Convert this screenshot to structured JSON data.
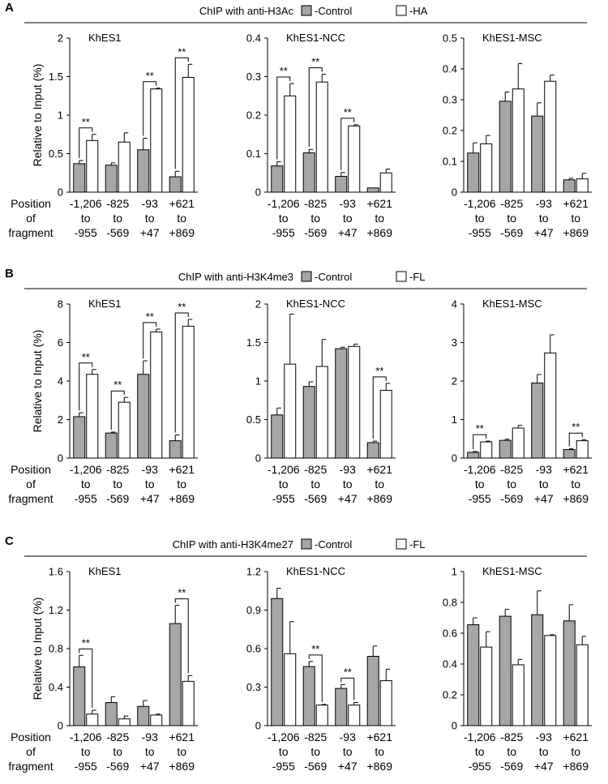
{
  "colors": {
    "control": "#a6a6a6",
    "treatment": "#ffffff",
    "stroke": "#000000"
  },
  "position_label": [
    "Position",
    "of",
    "fragment"
  ],
  "ylabel": "Relative to Input (%)",
  "fragments": [
    [
      "-1,206",
      "to",
      "-955"
    ],
    [
      "-825",
      "to",
      "-569"
    ],
    [
      "-93",
      "to",
      "+47"
    ],
    [
      "+621",
      "to",
      "+869"
    ]
  ],
  "panels": [
    {
      "letter": "A",
      "title": "ChIP with anti-H3Ac",
      "legend": {
        "control": "-Control",
        "treatment": "-HA"
      },
      "charts": [
        {
          "title": "KhES1",
          "ylim": [
            0,
            2
          ],
          "ticks": [
            "0",
            "0.5",
            "1",
            "1.5",
            "2"
          ],
          "series": [
            {
              "name": "-Control",
              "values": [
                0.37,
                0.35,
                0.55,
                0.2
              ],
              "errors": [
                0.04,
                0.03,
                0.15,
                0.07
              ]
            },
            {
              "name": "-HA",
              "values": [
                0.67,
                0.65,
                1.34,
                1.49
              ],
              "errors": [
                0.08,
                0.12,
                0.01,
                0.17
              ]
            }
          ],
          "significance": [
            {
              "index": 0,
              "label": "**"
            },
            {
              "index": 2,
              "label": "**"
            },
            {
              "index": 3,
              "label": "**"
            }
          ]
        },
        {
          "title": "KhES1-NCC",
          "ylim": [
            0,
            0.4
          ],
          "ticks": [
            "0",
            "0.1",
            "0.2",
            "0.3",
            "0.4"
          ],
          "series": [
            {
              "name": "-Control",
              "values": [
                0.068,
                0.102,
                0.041,
                0.011
              ],
              "errors": [
                0.011,
                0.009,
                0.01,
                0.0
              ]
            },
            {
              "name": "-HA",
              "values": [
                0.25,
                0.286,
                0.172,
                0.05
              ],
              "errors": [
                0.032,
                0.02,
                0.003,
                0.01
              ]
            }
          ],
          "significance": [
            {
              "index": 0,
              "label": "**"
            },
            {
              "index": 1,
              "label": "**"
            },
            {
              "index": 2,
              "label": "**"
            }
          ]
        },
        {
          "title": "KhES1-MSC",
          "ylim": [
            0,
            0.5
          ],
          "ticks": [
            "0",
            "0.1",
            "0.2",
            "0.3",
            "0.4",
            "0.5"
          ],
          "series": [
            {
              "name": "-Control",
              "values": [
                0.127,
                0.295,
                0.247,
                0.04
              ],
              "errors": [
                0.033,
                0.03,
                0.043,
                0.005
              ]
            },
            {
              "name": "-HA",
              "values": [
                0.157,
                0.335,
                0.36,
                0.043
              ],
              "errors": [
                0.027,
                0.082,
                0.02,
                0.018
              ]
            }
          ],
          "significance": []
        }
      ]
    },
    {
      "letter": "B",
      "title": "ChIP with anti-H3K4me3",
      "legend": {
        "control": "-Control",
        "treatment": "-FL"
      },
      "charts": [
        {
          "title": "KhES1",
          "ylim": [
            0,
            8
          ],
          "ticks": [
            "0",
            "2",
            "4",
            "6",
            "8"
          ],
          "series": [
            {
              "name": "-Control",
              "values": [
                2.15,
                1.3,
                4.35,
                0.9
              ],
              "errors": [
                0.2,
                0.05,
                0.7,
                0.3
              ]
            },
            {
              "name": "-FL",
              "values": [
                4.35,
                2.9,
                6.55,
                6.85
              ],
              "errors": [
                0.25,
                0.25,
                0.15,
                0.35
              ]
            }
          ],
          "significance": [
            {
              "index": 0,
              "label": "**"
            },
            {
              "index": 1,
              "label": "**"
            },
            {
              "index": 2,
              "label": "**"
            },
            {
              "index": 3,
              "label": "**"
            }
          ]
        },
        {
          "title": "KhES1-NCC",
          "ylim": [
            0,
            2
          ],
          "ticks": [
            "0",
            "0.5",
            "1",
            "1.5",
            "2"
          ],
          "series": [
            {
              "name": "-Control",
              "values": [
                0.56,
                0.93,
                1.42,
                0.2
              ],
              "errors": [
                0.09,
                0.06,
                0.02,
                0.02
              ]
            },
            {
              "name": "-FL",
              "values": [
                1.22,
                1.19,
                1.45,
                0.88
              ],
              "errors": [
                0.65,
                0.35,
                0.03,
                0.09
              ]
            }
          ],
          "significance": [
            {
              "index": 3,
              "label": "**"
            }
          ]
        },
        {
          "title": "KhES1-MSC",
          "ylim": [
            0,
            4
          ],
          "ticks": [
            "0",
            "1",
            "2",
            "3",
            "4"
          ],
          "series": [
            {
              "name": "-Control",
              "values": [
                0.15,
                0.46,
                1.95,
                0.22
              ],
              "errors": [
                0.02,
                0.03,
                0.22,
                0.02
              ]
            },
            {
              "name": "-FL",
              "values": [
                0.42,
                0.78,
                2.73,
                0.45
              ],
              "errors": [
                0.02,
                0.07,
                0.47,
                0.03
              ]
            }
          ],
          "significance": [
            {
              "index": 0,
              "label": "**"
            },
            {
              "index": 3,
              "label": "**"
            }
          ]
        }
      ]
    },
    {
      "letter": "C",
      "title": "ChIP with anti-H3K4me27",
      "legend": {
        "control": "-Control",
        "treatment": "-FL"
      },
      "charts": [
        {
          "title": "KhES1",
          "ylim": [
            0,
            1.6
          ],
          "ticks": [
            "0",
            "0.4",
            "0.8",
            "1.2",
            "1.6"
          ],
          "series": [
            {
              "name": "-Control",
              "values": [
                0.61,
                0.24,
                0.2,
                1.06
              ],
              "errors": [
                0.12,
                0.06,
                0.06,
                0.19
              ]
            },
            {
              "name": "-FL",
              "values": [
                0.12,
                0.07,
                0.11,
                0.46
              ],
              "errors": [
                0.04,
                0.03,
                0.01,
                0.06
              ]
            }
          ],
          "significance": [
            {
              "index": 0,
              "label": "**"
            },
            {
              "index": 3,
              "label": "**"
            }
          ]
        },
        {
          "title": "KhES1-NCC",
          "ylim": [
            0,
            1.2
          ],
          "ticks": [
            "0",
            "0.3",
            "0.6",
            "0.9",
            "1.2"
          ],
          "series": [
            {
              "name": "-Control",
              "values": [
                0.99,
                0.46,
                0.29,
                0.54
              ],
              "errors": [
                0.08,
                0.04,
                0.03,
                0.08
              ]
            },
            {
              "name": "-FL",
              "values": [
                0.56,
                0.16,
                0.16,
                0.35
              ],
              "errors": [
                0.25,
                0.005,
                0.02,
                0.09
              ]
            }
          ],
          "significance": [
            {
              "index": 1,
              "label": "**"
            },
            {
              "index": 2,
              "label": "**"
            }
          ]
        },
        {
          "title": "KhES1-MSC",
          "ylim": [
            0,
            1
          ],
          "ticks": [
            "0",
            "0.2",
            "0.4",
            "0.6",
            "0.8",
            "1"
          ],
          "series": [
            {
              "name": "-Control",
              "values": [
                0.655,
                0.71,
                0.72,
                0.68
              ],
              "errors": [
                0.045,
                0.045,
                0.155,
                0.105
              ]
            },
            {
              "name": "-FL",
              "values": [
                0.51,
                0.395,
                0.585,
                0.525
              ],
              "errors": [
                0.1,
                0.035,
                0.005,
                0.055
              ]
            }
          ],
          "significance": []
        }
      ]
    }
  ],
  "chart_data": [
    {
      "type": "bar",
      "panel": "A",
      "title": "KhES1",
      "categories": [
        "-1,206 to -955",
        "-825 to -569",
        "-93 to +47",
        "+621 to +869"
      ],
      "ylabel": "Relative to Input (%)",
      "ylim": [
        0,
        2
      ],
      "series": [
        {
          "name": "-Control",
          "values": [
            0.37,
            0.35,
            0.55,
            0.2
          ]
        },
        {
          "name": "-HA",
          "values": [
            0.67,
            0.65,
            1.34,
            1.49
          ]
        }
      ]
    },
    {
      "type": "bar",
      "panel": "A",
      "title": "KhES1-NCC",
      "categories": [
        "-1,206 to -955",
        "-825 to -569",
        "-93 to +47",
        "+621 to +869"
      ],
      "ylim": [
        0,
        0.4
      ],
      "series": [
        {
          "name": "-Control",
          "values": [
            0.068,
            0.102,
            0.041,
            0.011
          ]
        },
        {
          "name": "-HA",
          "values": [
            0.25,
            0.286,
            0.172,
            0.05
          ]
        }
      ]
    },
    {
      "type": "bar",
      "panel": "A",
      "title": "KhES1-MSC",
      "categories": [
        "-1,206 to -955",
        "-825 to -569",
        "-93 to +47",
        "+621 to +869"
      ],
      "ylim": [
        0,
        0.5
      ],
      "series": [
        {
          "name": "-Control",
          "values": [
            0.127,
            0.295,
            0.247,
            0.04
          ]
        },
        {
          "name": "-HA",
          "values": [
            0.157,
            0.335,
            0.36,
            0.043
          ]
        }
      ]
    },
    {
      "type": "bar",
      "panel": "B",
      "title": "KhES1",
      "categories": [
        "-1,206 to -955",
        "-825 to -569",
        "-93 to +47",
        "+621 to +869"
      ],
      "ylabel": "Relative to Input (%)",
      "ylim": [
        0,
        8
      ],
      "series": [
        {
          "name": "-Control",
          "values": [
            2.15,
            1.3,
            4.35,
            0.9
          ]
        },
        {
          "name": "-FL",
          "values": [
            4.35,
            2.9,
            6.55,
            6.85
          ]
        }
      ]
    },
    {
      "type": "bar",
      "panel": "B",
      "title": "KhES1-NCC",
      "categories": [
        "-1,206 to -955",
        "-825 to -569",
        "-93 to +47",
        "+621 to +869"
      ],
      "ylim": [
        0,
        2
      ],
      "series": [
        {
          "name": "-Control",
          "values": [
            0.56,
            0.93,
            1.42,
            0.2
          ]
        },
        {
          "name": "-FL",
          "values": [
            1.22,
            1.19,
            1.45,
            0.88
          ]
        }
      ]
    },
    {
      "type": "bar",
      "panel": "B",
      "title": "KhES1-MSC",
      "categories": [
        "-1,206 to -955",
        "-825 to -569",
        "-93 to +47",
        "+621 to +869"
      ],
      "ylim": [
        0,
        4
      ],
      "series": [
        {
          "name": "-Control",
          "values": [
            0.15,
            0.46,
            1.95,
            0.22
          ]
        },
        {
          "name": "-FL",
          "values": [
            0.42,
            0.78,
            2.73,
            0.45
          ]
        }
      ]
    },
    {
      "type": "bar",
      "panel": "C",
      "title": "KhES1",
      "categories": [
        "-1,206 to -955",
        "-825 to -569",
        "-93 to +47",
        "+621 to +869"
      ],
      "ylabel": "Relative to Input (%)",
      "ylim": [
        0,
        1.6
      ],
      "series": [
        {
          "name": "-Control",
          "values": [
            0.61,
            0.24,
            0.2,
            1.06
          ]
        },
        {
          "name": "-FL",
          "values": [
            0.12,
            0.07,
            0.11,
            0.46
          ]
        }
      ]
    },
    {
      "type": "bar",
      "panel": "C",
      "title": "KhES1-NCC",
      "categories": [
        "-1,206 to -955",
        "-825 to -569",
        "-93 to +47",
        "+621 to +869"
      ],
      "ylim": [
        0,
        1.2
      ],
      "series": [
        {
          "name": "-Control",
          "values": [
            0.99,
            0.46,
            0.29,
            0.54
          ]
        },
        {
          "name": "-FL",
          "values": [
            0.56,
            0.16,
            0.16,
            0.35
          ]
        }
      ]
    },
    {
      "type": "bar",
      "panel": "C",
      "title": "KhES1-MSC",
      "categories": [
        "-1,206 to -955",
        "-825 to -569",
        "-93 to +47",
        "+621 to +869"
      ],
      "ylim": [
        0,
        1
      ],
      "series": [
        {
          "name": "-Control",
          "values": [
            0.655,
            0.71,
            0.72,
            0.68
          ]
        },
        {
          "name": "-FL",
          "values": [
            0.51,
            0.395,
            0.585,
            0.525
          ]
        }
      ]
    }
  ]
}
